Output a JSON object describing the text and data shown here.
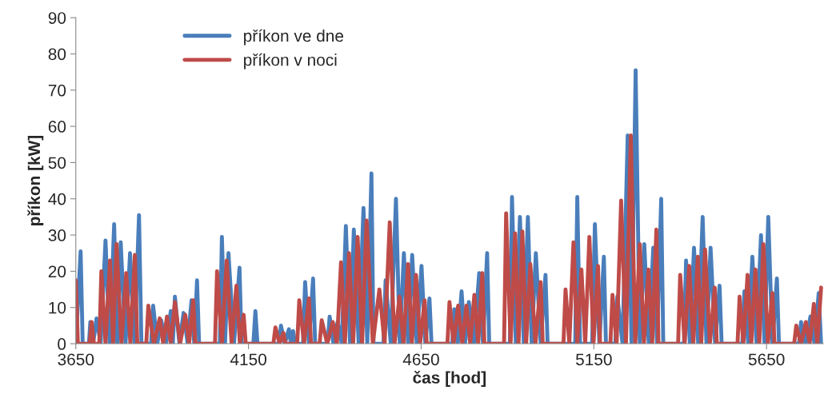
{
  "chart_data": {
    "type": "line",
    "xlabel": "čas [hod]",
    "ylabel": "příkon [kW]",
    "xlim": [
      3650,
      5814
    ],
    "xticks": [
      3650,
      4150,
      4650,
      5150,
      5650
    ],
    "ylim": [
      0,
      90
    ],
    "yticks": [
      0,
      10,
      20,
      30,
      40,
      50,
      60,
      70,
      80,
      90
    ],
    "grid": false,
    "legend": "top left",
    "marker": "none",
    "line_style": "solid",
    "series": [
      {
        "name": "příkon ve dne",
        "color": "#4a7ebb",
        "x": [
          3650,
          3664,
          3670,
          3688,
          3692,
          3700,
          3710,
          3722,
          3736,
          3748,
          3761,
          3770,
          3780,
          3794,
          3807,
          3820,
          3833,
          3840,
          3868,
          3874,
          3886,
          3897,
          3911,
          3925,
          3931,
          3937,
          3950,
          3962,
          3974,
          3985,
          3993,
          4001,
          4007,
          4067,
          4073,
          4082,
          4092,
          4108,
          4124,
          4130,
          4164,
          4170,
          4176,
          4238,
          4244,
          4255,
          4267,
          4273,
          4279,
          4285,
          4308,
          4314,
          4325,
          4337,
          4343,
          4379,
          4385,
          4396,
          4408,
          4420,
          4432,
          4444,
          4455,
          4469,
          4483,
          4494,
          4506,
          4512,
          4541,
          4547,
          4562,
          4577,
          4588,
          4600,
          4612,
          4624,
          4637,
          4651,
          4662,
          4674,
          4680,
          4740,
          4746,
          4756,
          4767,
          4777,
          4788,
          4803,
          4818,
          4829,
          4841,
          4847,
          4907,
          4913,
          4924,
          4936,
          4947,
          4959,
          4970,
          4982,
          4996,
          5010,
          5016,
          5096,
          5102,
          5110,
          5145,
          5153,
          5166,
          5179,
          5185,
          5212,
          5218,
          5233,
          5248,
          5259,
          5271,
          5283,
          5296,
          5309,
          5322,
          5333,
          5345,
          5351,
          5411,
          5417,
          5428,
          5440,
          5452,
          5465,
          5476,
          5488,
          5501,
          5514,
          5520,
          5580,
          5586,
          5597,
          5609,
          5621,
          5634,
          5644,
          5655,
          5667,
          5680,
          5686,
          5744,
          5750,
          5763,
          5777,
          5789,
          5801,
          5808
        ],
        "values": [
          0,
          25.5,
          0,
          0,
          6,
          0,
          7,
          0,
          28.5,
          0,
          33,
          0,
          28,
          0,
          25,
          0,
          35.5,
          0,
          0,
          10.5,
          0,
          6.5,
          0,
          9,
          0,
          13,
          0,
          8.5,
          0,
          12,
          0,
          17.5,
          0,
          0,
          29.5,
          0,
          25,
          0,
          21,
          0,
          0,
          9,
          0,
          0,
          5,
          0,
          4,
          0,
          3.5,
          0,
          0,
          17,
          0,
          18,
          0,
          0,
          7.5,
          0,
          6,
          0,
          32.5,
          0,
          31.5,
          0,
          37.5,
          0,
          47,
          0,
          0,
          17.5,
          0,
          40,
          0,
          25,
          0,
          24.5,
          0,
          21.5,
          0,
          12.5,
          0,
          0,
          9.5,
          0,
          14.5,
          0,
          11.5,
          0,
          19.5,
          0,
          25,
          0,
          0,
          40.5,
          0,
          35,
          0,
          35,
          0,
          25,
          0,
          19,
          0,
          0,
          40.5,
          0,
          0,
          33,
          0,
          24,
          0,
          0,
          13,
          0,
          57.5,
          0,
          75.5,
          0,
          27.5,
          0,
          26.5,
          0,
          40,
          0,
          0,
          23,
          0,
          26.5,
          0,
          35,
          0,
          26.5,
          0,
          16,
          0,
          0,
          14.5,
          0,
          24,
          0,
          30,
          0,
          35,
          0,
          18,
          0,
          0,
          6,
          0,
          7.5,
          0,
          14,
          0
        ]
      },
      {
        "name": "příkon v noci",
        "color": "#be4b48",
        "x": [
          3650,
          3656,
          3690,
          3696,
          3702,
          3718,
          3724,
          3736,
          3749,
          3758,
          3768,
          3782,
          3796,
          3808,
          3821,
          3828,
          3854,
          3860,
          3876,
          3893,
          3903,
          3914,
          3925,
          3937,
          3952,
          3967,
          3978,
          3990,
          3996,
          4053,
          4059,
          4073,
          4087,
          4101,
          4115,
          4125,
          4136,
          4142,
          4222,
          4228,
          4240,
          4251,
          4257,
          4291,
          4297,
          4311,
          4325,
          4331,
          4356,
          4362,
          4378,
          4394,
          4406,
          4418,
          4429,
          4441,
          4453,
          4466,
          4479,
          4492,
          4510,
          4529,
          4544,
          4559,
          4573,
          4587,
          4599,
          4612,
          4623,
          4635,
          4647,
          4660,
          4666,
          4726,
          4732,
          4744,
          4757,
          4769,
          4781,
          4792,
          4804,
          4815,
          4827,
          4833,
          4890,
          4896,
          4909,
          4922,
          4932,
          4943,
          4954,
          4966,
          4981,
          4996,
          5002,
          5062,
          5068,
          5079,
          5091,
          5102,
          5114,
          5125,
          5137,
          5149,
          5162,
          5168,
          5198,
          5204,
          5216,
          5229,
          5243,
          5257,
          5270,
          5283,
          5295,
          5308,
          5319,
          5331,
          5337,
          5394,
          5400,
          5413,
          5426,
          5438,
          5451,
          5461,
          5472,
          5486,
          5500,
          5506,
          5566,
          5572,
          5583,
          5595,
          5606,
          5618,
          5629,
          5641,
          5654,
          5667,
          5673,
          5730,
          5736,
          5750,
          5764,
          5775,
          5787,
          5797,
          5808
        ],
        "values": [
          17.5,
          0,
          0,
          6,
          0,
          0,
          20,
          0,
          23,
          0,
          27.5,
          0,
          19.5,
          0,
          24.5,
          0,
          0,
          10.5,
          0,
          7,
          0,
          7.5,
          0,
          11.5,
          0,
          8,
          0,
          12,
          0,
          0,
          20,
          0,
          23,
          0,
          16,
          0,
          8,
          0,
          0,
          4.5,
          0,
          3,
          0,
          0,
          12,
          0,
          12.5,
          0,
          0,
          6.5,
          0,
          6,
          0,
          22.5,
          0,
          25,
          0,
          29.5,
          0,
          34,
          0,
          15,
          0,
          33.5,
          0,
          13,
          0,
          22,
          0,
          19,
          0,
          12,
          0,
          0,
          11.5,
          0,
          10.5,
          0,
          10.5,
          0,
          13.5,
          0,
          19.5,
          0,
          0,
          36,
          0,
          30.5,
          0,
          31,
          0,
          22,
          0,
          17,
          0,
          0,
          15,
          0,
          28,
          0,
          20.5,
          0,
          29.5,
          0,
          21.5,
          0,
          0,
          13.5,
          0,
          39.5,
          0,
          57.5,
          0,
          27.5,
          0,
          20.5,
          0,
          31.5,
          0,
          0,
          19,
          0,
          21.5,
          0,
          24,
          0,
          26,
          0,
          15.5,
          0,
          0,
          13,
          0,
          19,
          0,
          20.5,
          0,
          27.5,
          0,
          14,
          0,
          0,
          5,
          0,
          6,
          0,
          11,
          0,
          15.5
        ]
      }
    ]
  }
}
